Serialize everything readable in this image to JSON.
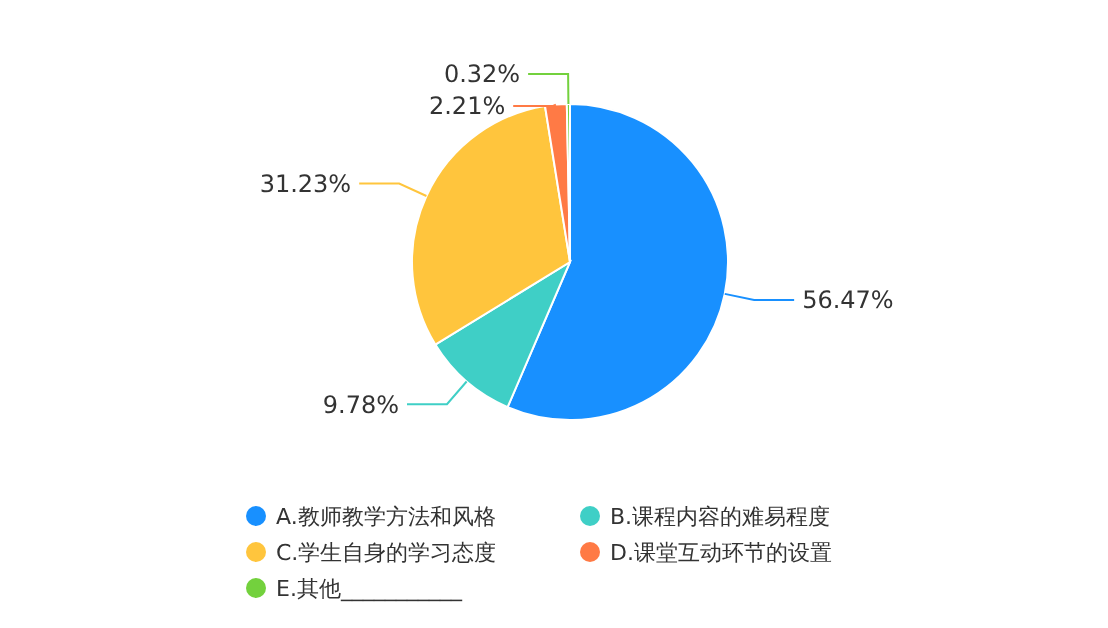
{
  "chart_data": {
    "type": "pie",
    "categories": [
      "A.教师教学方法和风格",
      "B.课程内容的难易程度",
      "C.学生自身的学习态度",
      "D.课堂互动环节的设置",
      "E.其他___________"
    ],
    "values": [
      56.47,
      9.78,
      31.23,
      2.21,
      0.32
    ],
    "colors": [
      "#1890ff",
      "#3fcfc6",
      "#ffc53d",
      "#ff7a45",
      "#73d13d"
    ],
    "value_labels": [
      "56.47%",
      "9.78%",
      "31.23%",
      "2.21%",
      "0.32%"
    ],
    "legend": "bottom"
  }
}
